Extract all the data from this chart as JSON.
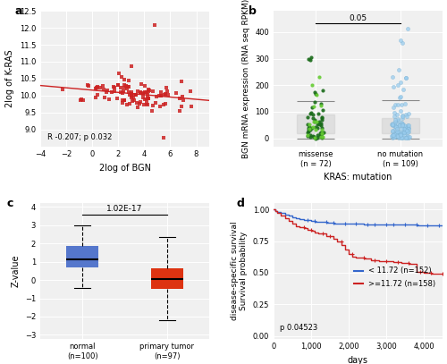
{
  "panel_a": {
    "xlabel": "2log of BGN",
    "ylabel": "2log of K-RAS",
    "annotation": "R -0.207; p 0.032",
    "xlim": [
      -4,
      9
    ],
    "ylim": [
      8.5,
      12.5
    ],
    "xticks": [
      -4,
      -2,
      0,
      2,
      4,
      6,
      8
    ],
    "yticks": [
      9.0,
      9.5,
      10.0,
      10.5,
      11.0,
      11.5,
      12.0,
      12.5
    ],
    "scatter_color": "#cc2222",
    "line_color": "#cc2222",
    "seed": 42,
    "n_points": 110,
    "x_mean": 3.5,
    "x_std": 2.2,
    "y_intercept": 10.15,
    "slope": -0.04,
    "noise_std": 0.22
  },
  "panel_b": {
    "xlabel": "KRAS: mutation",
    "ylabel": "BGN mRNA expression (RNA seq RPKM)",
    "ylim": [
      -30,
      480
    ],
    "yticks": [
      0,
      100,
      200,
      300,
      400
    ],
    "groups": [
      "missense\n(n = 72)",
      "no mutation\n(n = 109)"
    ],
    "pvalue": "0.05",
    "missense_driver_color": "#1a6b1a",
    "missense_vus_color": "#66cc33",
    "not_mutated_color": "#99ccee",
    "n_driver": 55,
    "n_vus": 17,
    "n_nomut": 109
  },
  "panel_c": {
    "xlabel_normal": "normal\n(n=100)",
    "xlabel_tumor": "primary tumor\n(n=97)",
    "ylabel": "Z-value",
    "ylim": [
      -3.2,
      4.2
    ],
    "yticks": [
      -3,
      -2,
      -1,
      0,
      1,
      2,
      3,
      4
    ],
    "pvalue": "1.02E-17",
    "normal_color": "#5577cc",
    "tumor_color": "#dd3311",
    "normal_box": {
      "q1": 0.7,
      "median": 1.15,
      "q3": 1.85,
      "whislo": -0.45,
      "whishi": 3.0
    },
    "tumor_box": {
      "q1": -0.5,
      "median": 0.05,
      "q3": 0.65,
      "whislo": -2.2,
      "whishi": 2.35
    }
  },
  "panel_d": {
    "xlabel": "days",
    "ylabel_top": "disease-specific survival",
    "ylabel_bot": "Survival probability",
    "xlim": [
      0,
      4500
    ],
    "ylim": [
      -0.02,
      1.05
    ],
    "xticks": [
      0,
      1000,
      2000,
      3000,
      4000
    ],
    "xticklabels": [
      "0",
      "1,000",
      "2,000",
      "3,000",
      "4,000"
    ],
    "yticks": [
      0.0,
      0.25,
      0.5,
      0.75,
      1.0
    ],
    "pvalue": "p 0.04523",
    "low_color": "#3366cc",
    "high_color": "#cc2222",
    "low_label": "< 11.72 (n=152)",
    "high_label": ">=11.72 (n=158)"
  },
  "label_fontsize": 7,
  "tick_fontsize": 6,
  "panel_label_fontsize": 9,
  "bg_color": "#f0f0f0"
}
